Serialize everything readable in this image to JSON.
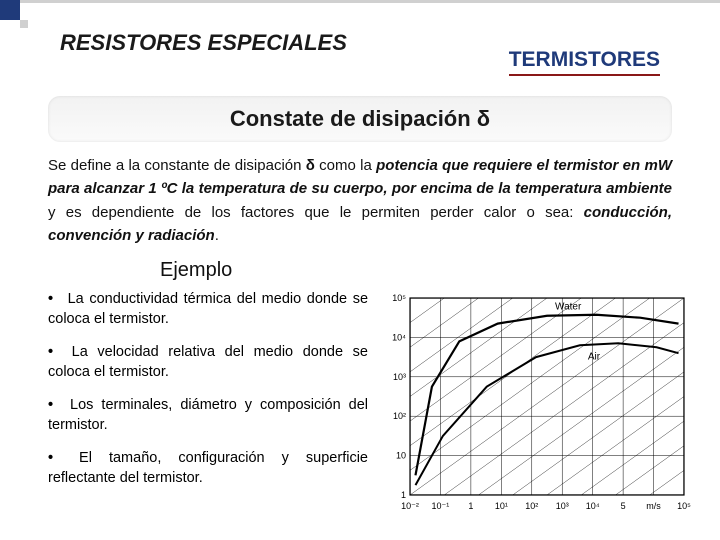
{
  "header": {
    "left": "RESISTORES ESPECIALES",
    "right": "TERMISTORES"
  },
  "box_title": "Constate de disipación   δ",
  "paragraph": {
    "p1": "Se define a la constante de disipación ",
    "sym": "δ",
    "p2": " como la ",
    "bi1": "potencia que requiere el termistor en mW para alcanzar 1 ºC la temperatura de su cuerpo, por encima de la temperatura ambiente",
    "p3": " y es dependiente de los factores que le permiten perder calor o sea: ",
    "bi2": "conducción, convención y radiación",
    "p4": "."
  },
  "ejemplo_label": "Ejemplo",
  "bullets": [
    "La conductividad térmica del medio donde se coloca el termistor.",
    "La velocidad relativa del medio donde se coloca el termistor.",
    "Los terminales, diámetro y composición del termistor.",
    "El tamaño, configuración y superficie reflectante del termistor."
  ],
  "chart": {
    "x_labels": [
      "10⁻²",
      "10⁻¹",
      "1",
      "10¹",
      "10²",
      "10³",
      "10⁴",
      "5",
      "m/s",
      "10⁵"
    ],
    "y_labels": [
      "10⁵",
      "10⁴",
      "10³",
      "10²",
      "10",
      "1"
    ],
    "curves": [
      {
        "label": "Water",
        "color": "#000000",
        "width": 2.2,
        "pts": [
          [
            0.02,
            90
          ],
          [
            0.08,
            45
          ],
          [
            0.18,
            22
          ],
          [
            0.32,
            13
          ],
          [
            0.5,
            9
          ],
          [
            0.68,
            8.5
          ],
          [
            0.84,
            10
          ],
          [
            0.98,
            13
          ]
        ]
      },
      {
        "label": "Air",
        "color": "#000000",
        "width": 2.0,
        "pts": [
          [
            0.02,
            95
          ],
          [
            0.12,
            70
          ],
          [
            0.28,
            45
          ],
          [
            0.46,
            30
          ],
          [
            0.62,
            24
          ],
          [
            0.76,
            23
          ],
          [
            0.9,
            25
          ],
          [
            0.98,
            28
          ]
        ]
      }
    ],
    "diag_lines": 8,
    "axis_color": "#000000",
    "grid_color": "#000000",
    "background": "#ffffff",
    "font_size": 9
  }
}
